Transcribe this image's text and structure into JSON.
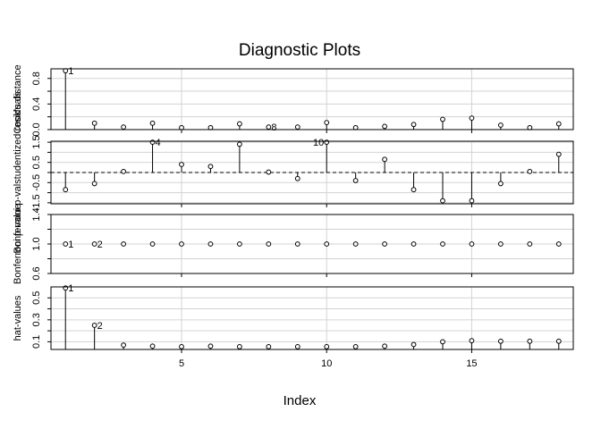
{
  "chart_data": {
    "type": "scatter",
    "title": "Diagnostic Plots",
    "xlabel": "Index",
    "xlim": [
      0.5,
      18.5
    ],
    "xticks": [
      5,
      10,
      15
    ],
    "x": [
      1,
      2,
      3,
      4,
      5,
      6,
      7,
      8,
      9,
      10,
      11,
      12,
      13,
      14,
      15,
      16,
      17,
      18
    ],
    "grid": true,
    "panels": [
      {
        "ylabel": "Cook's distance",
        "ylim": [
          0.0,
          0.95
        ],
        "yticks": [
          "0.0",
          "0.4",
          "0.8"
        ],
        "ytick_values": [
          0.0,
          0.2,
          0.4,
          0.6,
          0.8
        ],
        "spike_base": 0,
        "values": [
          0.92,
          0.1,
          0.04,
          0.1,
          0.03,
          0.03,
          0.09,
          0.04,
          0.04,
          0.11,
          0.03,
          0.05,
          0.08,
          0.16,
          0.18,
          0.07,
          0.03,
          0.09
        ],
        "labels": [
          {
            "x": 1,
            "text": "1",
            "side": "right"
          },
          {
            "x": 8,
            "text": "8",
            "side": "right"
          }
        ]
      },
      {
        "ylabel": "Bonferroni p-valstudentized residuals",
        "ylim": [
          -1.55,
          1.55
        ],
        "yticks": [
          "-1.5",
          "-0.5",
          "0.5",
          "1.5"
        ],
        "ytick_values": [
          -1.5,
          -1.0,
          -0.5,
          0.0,
          0.5,
          1.0,
          1.5
        ],
        "spike_base": 0,
        "refline": 0,
        "values": [
          -0.85,
          -0.55,
          0.05,
          1.5,
          0.4,
          0.3,
          1.4,
          0.02,
          -0.3,
          1.5,
          -0.4,
          0.65,
          -0.85,
          -1.4,
          -1.4,
          -0.55,
          0.05,
          0.9
        ],
        "labels": [
          {
            "x": 4,
            "text": "4",
            "side": "right"
          },
          {
            "x": 10,
            "text": "10",
            "side": "left"
          }
        ]
      },
      {
        "ylabel": "Bonferroni p-value",
        "ylim": [
          0.6,
          1.4
        ],
        "yticks": [
          "0.6",
          "1.0",
          "1.4"
        ],
        "ytick_values": [
          0.6,
          0.8,
          1.0,
          1.2,
          1.4
        ],
        "spike_base": null,
        "values": [
          1,
          1,
          1,
          1,
          1,
          1,
          1,
          1,
          1,
          1,
          1,
          1,
          1,
          1,
          1,
          1,
          1,
          1
        ],
        "labels": [
          {
            "x": 1,
            "text": "1",
            "side": "right"
          },
          {
            "x": 2,
            "text": "2",
            "side": "right"
          }
        ]
      },
      {
        "ylabel": "hat-values",
        "ylim": [
          0.03,
          0.6
        ],
        "yticks": [
          "0.1",
          "0.3",
          "0.5"
        ],
        "ytick_values": [
          0.1,
          0.2,
          0.3,
          0.4,
          0.5
        ],
        "spike_base": 0.03,
        "values": [
          0.59,
          0.25,
          0.07,
          0.06,
          0.055,
          0.06,
          0.055,
          0.055,
          0.055,
          0.055,
          0.055,
          0.06,
          0.075,
          0.1,
          0.11,
          0.105,
          0.105,
          0.105
        ],
        "labels": [
          {
            "x": 1,
            "text": "1",
            "side": "right"
          },
          {
            "x": 2,
            "text": "2",
            "side": "right"
          }
        ]
      }
    ]
  }
}
